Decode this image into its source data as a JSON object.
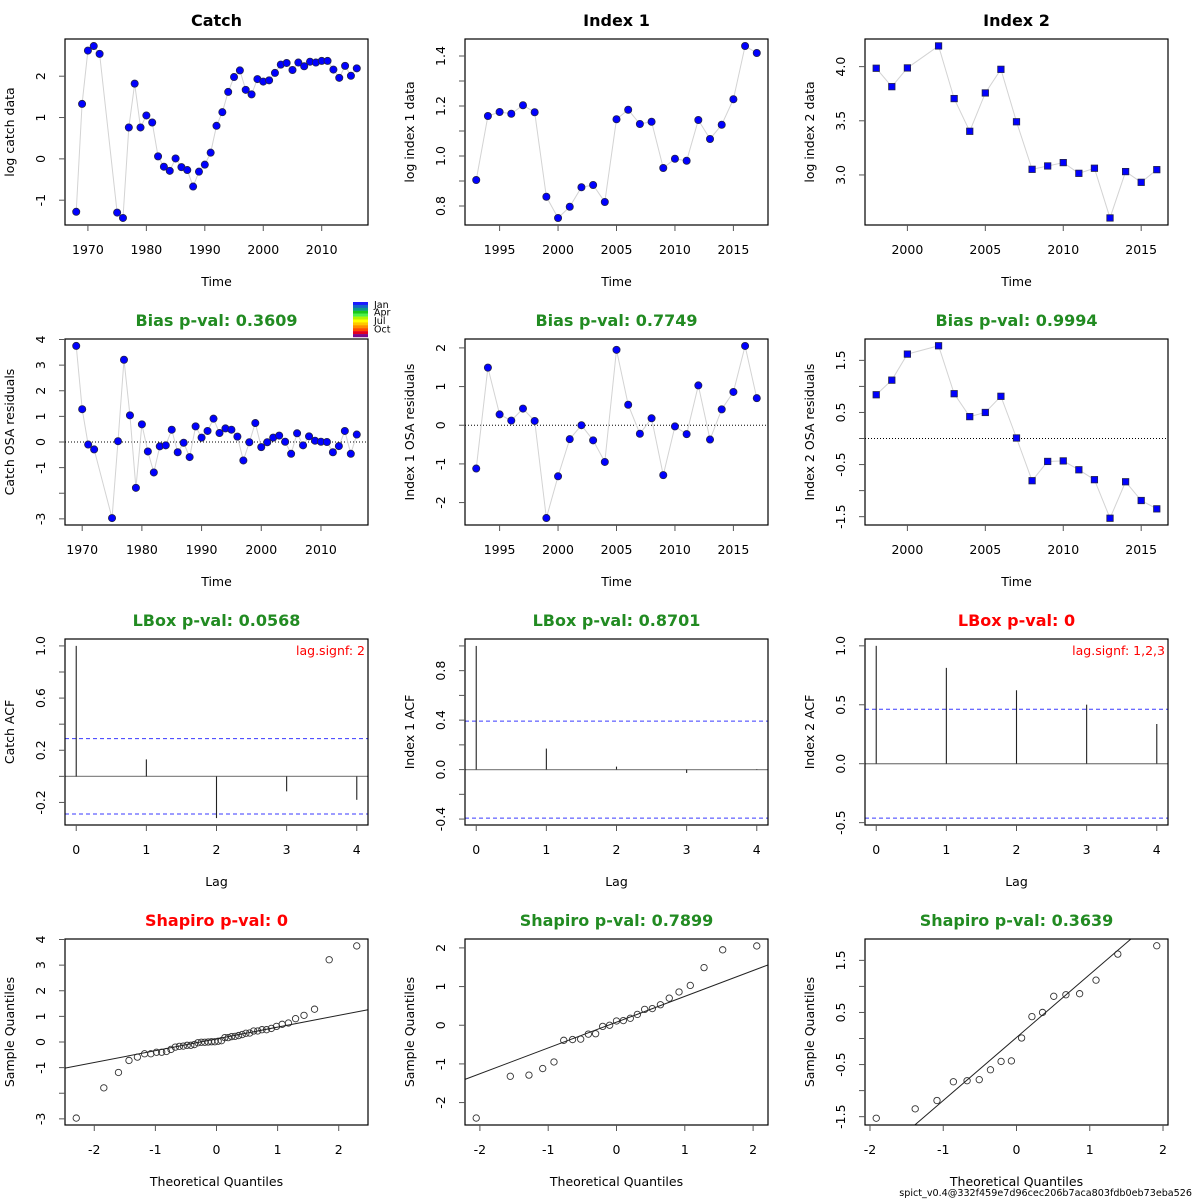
{
  "figure": {
    "footer": "spict_v0.4@332f459e7d96cec206b7aca803fdb0eb73eba526",
    "palette": {
      "point_fill": "#0000FF",
      "point_stroke": "#22224a",
      "connect_line": "#D3D3D3",
      "ok_title": "#228B22",
      "fail_title": "#FF0000",
      "ci_line": "#3A3AFF",
      "zero_line": "#888888",
      "qq_point": "#333333"
    }
  },
  "month_legend": {
    "labels": [
      "Jan",
      "Apr",
      "Jul",
      "Oct"
    ],
    "colors": [
      "#1a1aff",
      "#1466c8",
      "#0a9a8a",
      "#19c819",
      "#4cf04c",
      "#b4f500",
      "#ffff00",
      "#ffc800",
      "#ff8c00",
      "#ff4b00",
      "#e6001e",
      "#7a0a8c"
    ]
  },
  "chart_data": [
    {
      "id": "catch-data",
      "type": "line",
      "subtype": "series",
      "title": "Catch",
      "title_color": "#000000",
      "xlabel": "Time",
      "ylabel": "log catch data",
      "marker": "circle",
      "x": [
        1968,
        1969,
        1970,
        1971,
        1972,
        1975,
        1976,
        1977,
        1978,
        1979,
        1980,
        1981,
        1982,
        1983,
        1984,
        1985,
        1986,
        1987,
        1988,
        1989,
        1990,
        1991,
        1992,
        1993,
        1994,
        1995,
        1996,
        1997,
        1998,
        1999,
        2000,
        2001,
        2002,
        2003,
        2004,
        2005,
        2006,
        2007,
        2008,
        2009,
        2010,
        2011,
        2012,
        2013,
        2014,
        2015,
        2016
      ],
      "y": [
        -1.28,
        1.33,
        2.62,
        2.73,
        2.54,
        -1.3,
        -1.43,
        0.76,
        1.82,
        0.76,
        1.05,
        0.88,
        0.06,
        -0.19,
        -0.29,
        0.01,
        -0.2,
        -0.27,
        -0.67,
        -0.31,
        -0.14,
        0.15,
        0.8,
        1.13,
        1.62,
        1.98,
        2.14,
        1.67,
        1.56,
        1.93,
        1.87,
        1.9,
        2.08,
        2.28,
        2.32,
        2.15,
        2.33,
        2.24,
        2.35,
        2.33,
        2.37,
        2.37,
        2.16,
        1.96,
        2.25,
        2.01,
        2.19
      ],
      "xlim": [
        1966.08,
        2017.92
      ],
      "ylim": [
        -1.6,
        2.9
      ],
      "xticks": [
        1970,
        1980,
        1990,
        2000,
        2010
      ],
      "xtick_labels": [
        "1970",
        "1980",
        "1990",
        "2000",
        "2010"
      ],
      "yticks": [
        -1,
        0,
        1,
        2
      ],
      "ytick_labels": [
        "-1",
        "0",
        "1",
        "2"
      ],
      "grid": false
    },
    {
      "id": "index1-data",
      "type": "line",
      "subtype": "series",
      "title": "Index 1",
      "title_color": "#000000",
      "xlabel": "Time",
      "ylabel": "log index 1 data",
      "marker": "circle",
      "x": [
        1993,
        1994,
        1995,
        1996,
        1997,
        1998,
        1999,
        2000,
        2001,
        2002,
        2003,
        2004,
        2005,
        2006,
        2007,
        2008,
        2009,
        2010,
        2011,
        2012,
        2013,
        2014,
        2015,
        2016,
        2017
      ],
      "y": [
        0.904,
        1.16,
        1.176,
        1.169,
        1.203,
        1.175,
        0.837,
        0.752,
        0.797,
        0.875,
        0.884,
        0.816,
        1.147,
        1.185,
        1.128,
        1.137,
        0.952,
        0.989,
        0.981,
        1.144,
        1.068,
        1.125,
        1.227,
        1.44,
        1.412
      ],
      "xlim": [
        1992.04,
        2017.96
      ],
      "ylim": [
        0.724,
        1.468
      ],
      "xticks": [
        1995,
        2000,
        2005,
        2010,
        2015
      ],
      "xtick_labels": [
        "1995",
        "2000",
        "2005",
        "2010",
        "2015"
      ],
      "yticks": [
        0.8,
        0.9,
        1.0,
        1.1,
        1.2,
        1.3,
        1.4
      ],
      "ytick_labels": [
        "0.8",
        "",
        "1.0",
        "",
        "1.2",
        "",
        "1.4"
      ],
      "grid": false
    },
    {
      "id": "index2-data",
      "type": "line",
      "subtype": "series",
      "title": "Index 2",
      "title_color": "#000000",
      "xlabel": "Time",
      "ylabel": "log index 2 data",
      "marker": "square",
      "x": [
        1998,
        1999,
        2000,
        2002,
        2003,
        2004,
        2005,
        2006,
        2007,
        2008,
        2009,
        2010,
        2011,
        2012,
        2013,
        2014,
        2015,
        2016
      ],
      "y": [
        3.985,
        3.815,
        3.988,
        4.191,
        3.705,
        3.403,
        3.757,
        3.975,
        3.491,
        3.052,
        3.083,
        3.114,
        3.015,
        3.062,
        2.603,
        3.031,
        2.932,
        3.049
      ],
      "xlim": [
        1997.28,
        2016.72
      ],
      "ylim": [
        2.538,
        4.255
      ],
      "xticks": [
        2000,
        2005,
        2010,
        2015
      ],
      "xtick_labels": [
        "2000",
        "2005",
        "2010",
        "2015"
      ],
      "yticks": [
        3.0,
        3.5,
        4.0
      ],
      "ytick_labels": [
        "3.0",
        "3.5",
        "4.0"
      ],
      "grid": false
    },
    {
      "id": "catch-residuals",
      "type": "line",
      "subtype": "residuals",
      "title": "Bias p-val: 0.3609",
      "title_color": "#228B22",
      "xlabel": "Time",
      "ylabel": "Catch OSA residuals",
      "marker": "circle",
      "hline": 0,
      "x": [
        1969,
        1970,
        1971,
        1972,
        1975,
        1976,
        1977,
        1978,
        1979,
        1980,
        1981,
        1982,
        1983,
        1984,
        1985,
        1986,
        1987,
        1988,
        1989,
        1990,
        1991,
        1992,
        1993,
        1994,
        1995,
        1996,
        1997,
        1998,
        1999,
        2000,
        2001,
        2002,
        2003,
        2004,
        2005,
        2006,
        2007,
        2008,
        2009,
        2010,
        2011,
        2012,
        2013,
        2014,
        2015,
        2016
      ],
      "y": [
        3.75,
        1.28,
        -0.1,
        -0.29,
        -2.97,
        0.03,
        3.21,
        1.04,
        -1.79,
        0.69,
        -0.37,
        -1.19,
        -0.17,
        -0.13,
        0.48,
        -0.4,
        -0.03,
        -0.59,
        0.61,
        0.17,
        0.43,
        0.91,
        0.35,
        0.53,
        0.48,
        0.21,
        -0.72,
        -0.01,
        0.74,
        -0.2,
        -0.01,
        0.17,
        0.25,
        0.01,
        -0.46,
        0.34,
        -0.13,
        0.22,
        0.05,
        0.01,
        0.0,
        -0.4,
        -0.16,
        0.43,
        -0.46,
        0.29
      ],
      "xlim": [
        1967.12,
        2017.88
      ],
      "ylim": [
        -3.24,
        4.02
      ],
      "xticks": [
        1970,
        1980,
        1990,
        2000,
        2010
      ],
      "xtick_labels": [
        "1970",
        "1980",
        "1990",
        "2000",
        "2010"
      ],
      "yticks": [
        -3,
        -2,
        -1,
        0,
        1,
        2,
        3,
        4
      ],
      "ytick_labels": [
        "-3",
        "",
        "-1",
        "0",
        "1",
        "2",
        "3",
        "4"
      ],
      "grid": false
    },
    {
      "id": "index1-residuals",
      "type": "line",
      "subtype": "residuals",
      "title": "Bias p-val: 0.7749",
      "title_color": "#228B22",
      "xlabel": "Time",
      "ylabel": "Index 1 OSA residuals",
      "marker": "circle",
      "hline": 0,
      "x": [
        1993,
        1994,
        1995,
        1996,
        1997,
        1998,
        1999,
        2000,
        2001,
        2002,
        2003,
        2004,
        2005,
        2006,
        2007,
        2008,
        2009,
        2010,
        2011,
        2012,
        2013,
        2014,
        2015,
        2016,
        2017
      ],
      "y": [
        -1.12,
        1.49,
        0.28,
        0.12,
        0.43,
        0.11,
        -2.4,
        -1.32,
        -0.36,
        0.0,
        -0.39,
        -0.95,
        1.95,
        0.53,
        -0.22,
        0.18,
        -1.29,
        -0.03,
        -0.23,
        1.03,
        -0.37,
        0.41,
        0.86,
        2.05,
        0.7
      ],
      "xlim": [
        1992.04,
        2017.96
      ],
      "ylim": [
        -2.58,
        2.23
      ],
      "xticks": [
        1995,
        2000,
        2005,
        2010,
        2015
      ],
      "xtick_labels": [
        "1995",
        "2000",
        "2005",
        "2010",
        "2015"
      ],
      "yticks": [
        -2,
        -1,
        0,
        1,
        2
      ],
      "ytick_labels": [
        "-2",
        "-1",
        "0",
        "1",
        "2"
      ],
      "grid": false
    },
    {
      "id": "index2-residuals",
      "type": "line",
      "subtype": "residuals",
      "title": "Bias p-val: 0.9994",
      "title_color": "#228B22",
      "xlabel": "Time",
      "ylabel": "Index 2 OSA residuals",
      "marker": "square",
      "hline": 0,
      "x": [
        1998,
        1999,
        2000,
        2002,
        2003,
        2004,
        2005,
        2006,
        2007,
        2008,
        2009,
        2010,
        2011,
        2012,
        2013,
        2014,
        2015,
        2016
      ],
      "y": [
        0.84,
        1.12,
        1.62,
        1.78,
        0.86,
        0.42,
        0.5,
        0.81,
        0.01,
        -0.81,
        -0.44,
        -0.43,
        -0.6,
        -0.79,
        -1.53,
        -0.83,
        -1.19,
        -1.35
      ],
      "xlim": [
        1997.28,
        2016.72
      ],
      "ylim": [
        -1.66,
        1.91
      ],
      "xticks": [
        2000,
        2005,
        2010,
        2015
      ],
      "xtick_labels": [
        "2000",
        "2005",
        "2010",
        "2015"
      ],
      "yticks": [
        -1.5,
        -1.0,
        -0.5,
        0,
        0.5,
        1.0,
        1.5
      ],
      "ytick_labels": [
        "-1.5",
        "",
        "-0.5",
        "",
        "0.5",
        "",
        "1.5"
      ],
      "grid": false
    },
    {
      "id": "catch-acf",
      "type": "bar",
      "subtype": "acf",
      "title": "LBox p-val: 0.0568",
      "title_color": "#228B22",
      "xlabel": "Lag",
      "ylabel": "Catch ACF",
      "x": [
        0,
        1,
        2,
        3,
        4
      ],
      "y": [
        1.0,
        0.13,
        -0.32,
        -0.115,
        -0.18
      ],
      "ci": 0.289,
      "annotation": "lag.signf: 2",
      "annotation_color": "#FF0000",
      "xlim": [
        -0.16,
        4.16
      ],
      "ylim": [
        -0.373,
        1.053
      ],
      "xticks": [
        0,
        1,
        2,
        3,
        4
      ],
      "xtick_labels": [
        "0",
        "1",
        "2",
        "3",
        "4"
      ],
      "yticks": [
        -0.2,
        0,
        0.2,
        0.4,
        0.6,
        0.8,
        1.0
      ],
      "ytick_labels": [
        "-0.2",
        "",
        "0.2",
        "",
        "0.6",
        "",
        "1.0"
      ],
      "grid": false
    },
    {
      "id": "index1-acf",
      "type": "bar",
      "subtype": "acf",
      "title": "LBox p-val: 0.8701",
      "title_color": "#228B22",
      "xlabel": "Lag",
      "ylabel": "Index 1 ACF",
      "x": [
        0,
        1,
        2,
        3,
        4
      ],
      "y": [
        1.0,
        0.17,
        0.024,
        -0.027,
        0.004
      ],
      "ci": 0.392,
      "xlim": [
        -0.16,
        4.16
      ],
      "ylim": [
        -0.448,
        1.056
      ],
      "xticks": [
        0,
        1,
        2,
        3,
        4
      ],
      "xtick_labels": [
        "0",
        "1",
        "2",
        "3",
        "4"
      ],
      "yticks": [
        -0.4,
        -0.2,
        0,
        0.2,
        0.4,
        0.6,
        0.8,
        1.0
      ],
      "ytick_labels": [
        "-0.4",
        "",
        "0.0",
        "",
        "0.4",
        "",
        "0.8",
        ""
      ],
      "grid": false
    },
    {
      "id": "index2-acf",
      "type": "bar",
      "subtype": "acf",
      "title": "LBox p-val: 0",
      "title_color": "#FF0000",
      "xlabel": "Lag",
      "ylabel": "Index 2 ACF",
      "x": [
        0,
        1,
        2,
        3,
        4
      ],
      "y": [
        1.0,
        0.813,
        0.623,
        0.501,
        0.337
      ],
      "ci": 0.462,
      "annotation": "lag.signf: 1,2,3",
      "annotation_color": "#FF0000",
      "xlim": [
        -0.16,
        4.16
      ],
      "ylim": [
        -0.52,
        1.058
      ],
      "xticks": [
        0,
        1,
        2,
        3,
        4
      ],
      "xtick_labels": [
        "0",
        "1",
        "2",
        "3",
        "4"
      ],
      "yticks": [
        -0.5,
        0,
        0.5,
        1.0
      ],
      "ytick_labels": [
        "-0.5",
        "0.0",
        "0.5",
        "1.0"
      ],
      "grid": false
    },
    {
      "id": "catch-qq",
      "type": "scatter",
      "subtype": "qq",
      "title": "Shapiro p-val: 0",
      "title_color": "#FF0000",
      "xlabel": "Theoretical Quantiles",
      "ylabel": "Sample Quantiles",
      "theoretical": "qnorm(ppoints(n))",
      "n": 46,
      "sample_quantiles": [
        -2.97,
        -1.79,
        -1.19,
        -0.72,
        -0.59,
        -0.46,
        -0.46,
        -0.4,
        -0.4,
        -0.37,
        -0.29,
        -0.2,
        -0.17,
        -0.16,
        -0.13,
        -0.13,
        -0.1,
        -0.03,
        -0.01,
        -0.01,
        0.0,
        0.01,
        0.01,
        0.03,
        0.05,
        0.17,
        0.17,
        0.21,
        0.22,
        0.25,
        0.29,
        0.34,
        0.35,
        0.43,
        0.43,
        0.48,
        0.48,
        0.53,
        0.61,
        0.69,
        0.74,
        0.91,
        1.04,
        1.28,
        3.21,
        3.75
      ],
      "qqline": {
        "intercept": 0.12,
        "slope": 0.46
      },
      "xlim": [
        -2.479,
        2.479
      ],
      "ylim": [
        -3.24,
        4.02
      ],
      "xticks": [
        -2,
        -1,
        0,
        1,
        2
      ],
      "xtick_labels": [
        "-2",
        "-1",
        "0",
        "1",
        "2"
      ],
      "yticks": [
        -3,
        -2,
        -1,
        0,
        1,
        2,
        3,
        4
      ],
      "ytick_labels": [
        "-3",
        "",
        "-1",
        "0",
        "1",
        "2",
        "3",
        "4"
      ],
      "grid": false
    },
    {
      "id": "index1-qq",
      "type": "scatter",
      "subtype": "qq",
      "title": "Shapiro p-val: 0.7899",
      "title_color": "#228B22",
      "xlabel": "Theoretical Quantiles",
      "ylabel": "Sample Quantiles",
      "theoretical": "qnorm(ppoints(n))",
      "n": 25,
      "sample_quantiles": [
        -2.4,
        -1.32,
        -1.29,
        -1.12,
        -0.95,
        -0.39,
        -0.37,
        -0.36,
        -0.23,
        -0.22,
        -0.03,
        0.0,
        0.11,
        0.12,
        0.18,
        0.28,
        0.41,
        0.43,
        0.53,
        0.7,
        0.86,
        1.03,
        1.49,
        1.95,
        2.05
      ],
      "qqline": {
        "intercept": 0.08,
        "slope": 0.667
      },
      "xlim": [
        -2.218,
        2.218
      ],
      "ylim": [
        -2.58,
        2.23
      ],
      "xticks": [
        -2,
        -1,
        0,
        1,
        2
      ],
      "xtick_labels": [
        "-2",
        "-1",
        "0",
        "1",
        "2"
      ],
      "yticks": [
        -2,
        -1,
        0,
        1,
        2
      ],
      "ytick_labels": [
        "-2",
        "-1",
        "0",
        "1",
        "2"
      ],
      "grid": false
    },
    {
      "id": "index2-qq",
      "type": "scatter",
      "subtype": "qq",
      "title": "Shapiro p-val: 0.3639",
      "title_color": "#228B22",
      "xlabel": "Theoretical Quantiles",
      "ylabel": "Sample Quantiles",
      "theoretical": "qnorm(ppoints(n))",
      "n": 18,
      "sample_quantiles": [
        -1.53,
        -1.35,
        -1.19,
        -0.83,
        -0.81,
        -0.79,
        -0.6,
        -0.44,
        -0.43,
        0.01,
        0.42,
        0.5,
        0.81,
        0.84,
        0.86,
        1.12,
        1.62,
        1.78
      ],
      "qqline": {
        "intercept": 0.02,
        "slope": 1.21
      },
      "xlim": [
        -2.068,
        2.068
      ],
      "ylim": [
        -1.66,
        1.91
      ],
      "xticks": [
        -2,
        -1,
        0,
        1,
        2
      ],
      "xtick_labels": [
        "-2",
        "-1",
        "0",
        "1",
        "2"
      ],
      "yticks": [
        -1.5,
        -1.0,
        -0.5,
        0,
        0.5,
        1.0,
        1.5
      ],
      "ytick_labels": [
        "-1.5",
        "",
        "-0.5",
        "",
        "0.5",
        "",
        "1.5"
      ],
      "grid": false
    }
  ]
}
